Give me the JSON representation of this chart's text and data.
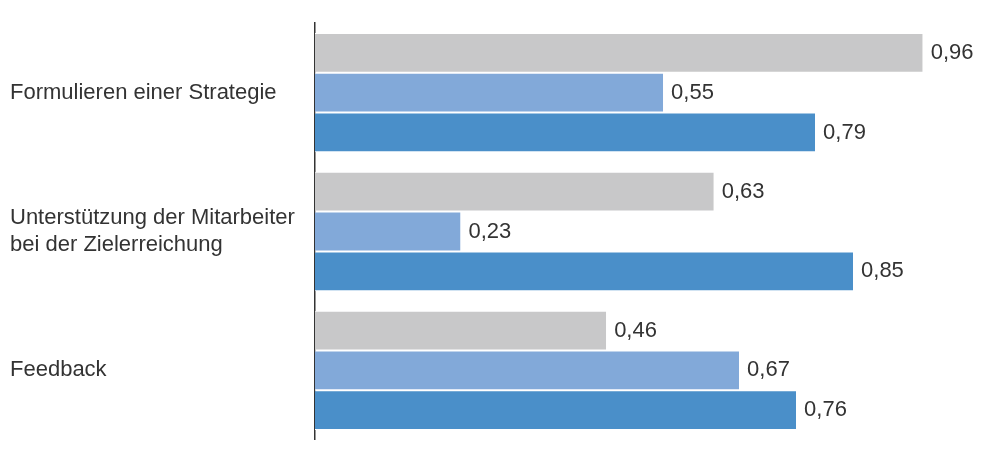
{
  "chart_data": {
    "type": "bar",
    "orientation": "horizontal",
    "categories": [
      "Formulieren einer Strategie",
      "Unterstützung der Mitarbeiter bei der Zielerreichung",
      "Feedback"
    ],
    "series": [
      {
        "color": "#c8c8c9",
        "values": [
          0.96,
          0.63,
          0.46
        ],
        "value_labels": [
          "0,96",
          "0,63",
          "0,46"
        ]
      },
      {
        "color": "#82a9d9",
        "values": [
          0.55,
          0.23,
          0.67
        ],
        "value_labels": [
          "0,55",
          "0,23",
          "0,67"
        ]
      },
      {
        "color": "#4a8fc9",
        "values": [
          0.79,
          0.85,
          0.76
        ],
        "value_labels": [
          "0,79",
          "0,85",
          "0,76"
        ]
      }
    ]
  }
}
